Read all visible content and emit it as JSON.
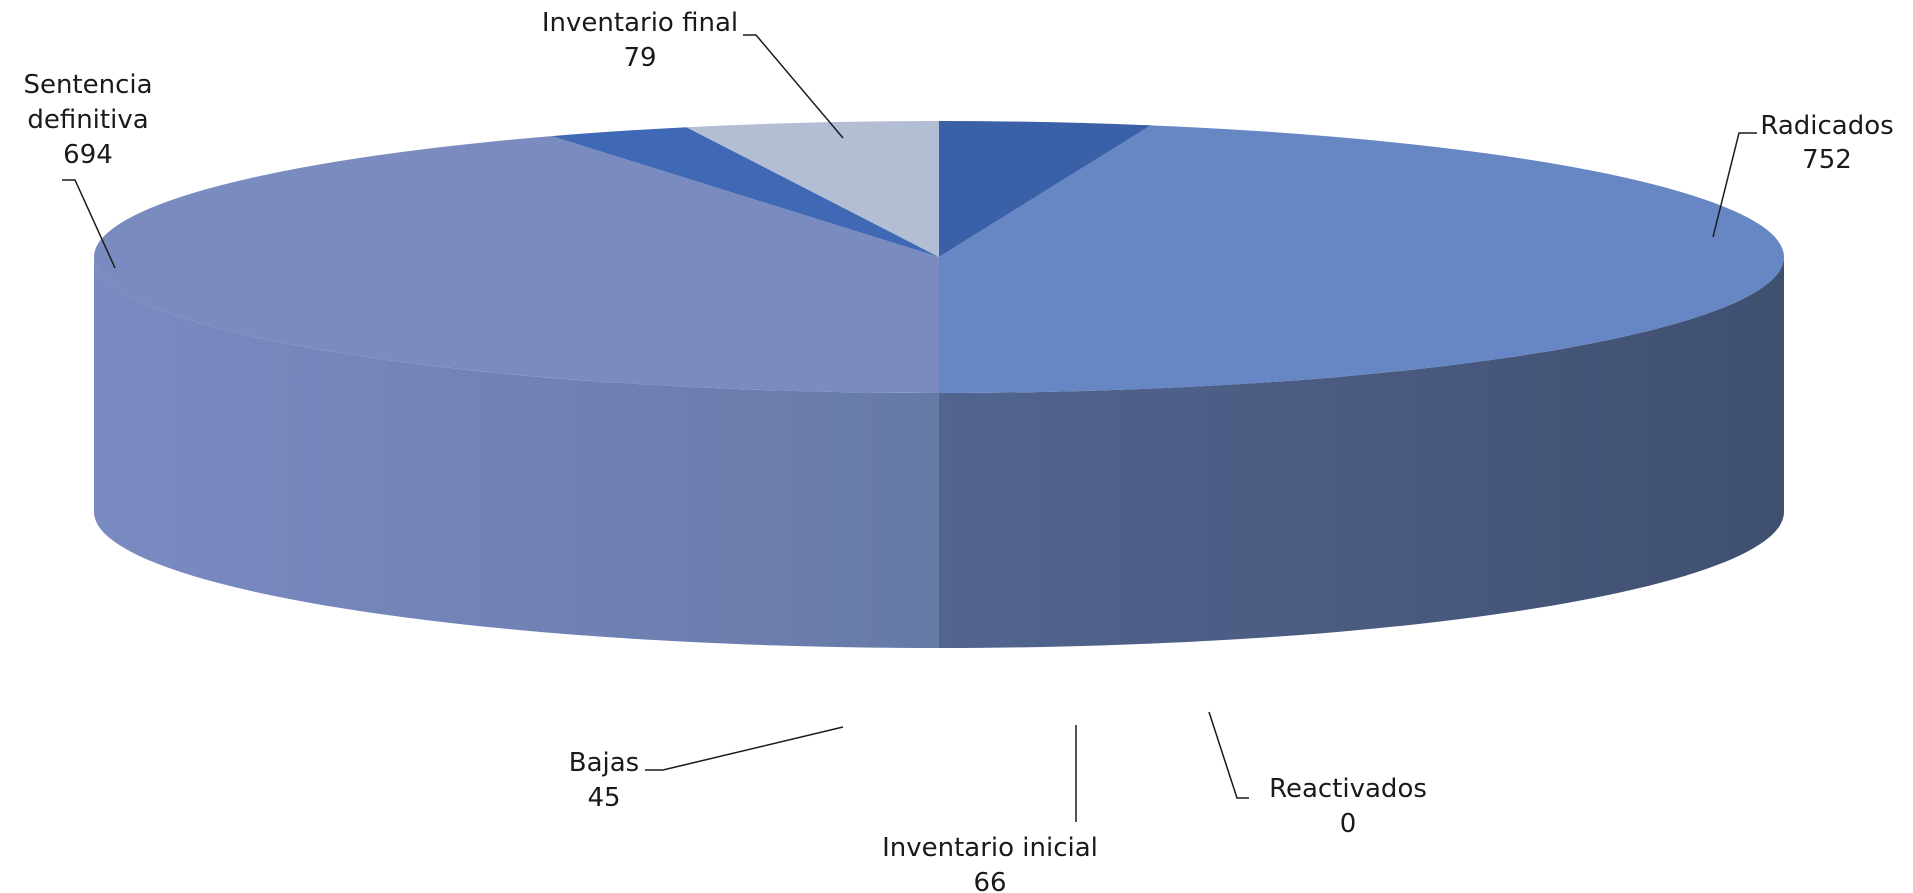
{
  "chart_data": {
    "type": "pie",
    "variant": "3d",
    "title": "",
    "slices": [
      {
        "label": "Inventario inicial",
        "value": 66,
        "color": "#3a60a8"
      },
      {
        "label": "Radicados",
        "value": 752,
        "color": "#6686c4"
      },
      {
        "label": "Reactivados",
        "value": 0,
        "color": "#4a6fb0"
      },
      {
        "label": "Sentencia definitiva",
        "value": 694,
        "color": "#7a8bbf"
      },
      {
        "label": "Bajas",
        "value": 45,
        "color": "#3f69b4"
      },
      {
        "label": "Inventario final",
        "value": 79,
        "color": "#b3bdd3"
      }
    ],
    "legend": "none",
    "data_labels": "outside with leader lines"
  }
}
